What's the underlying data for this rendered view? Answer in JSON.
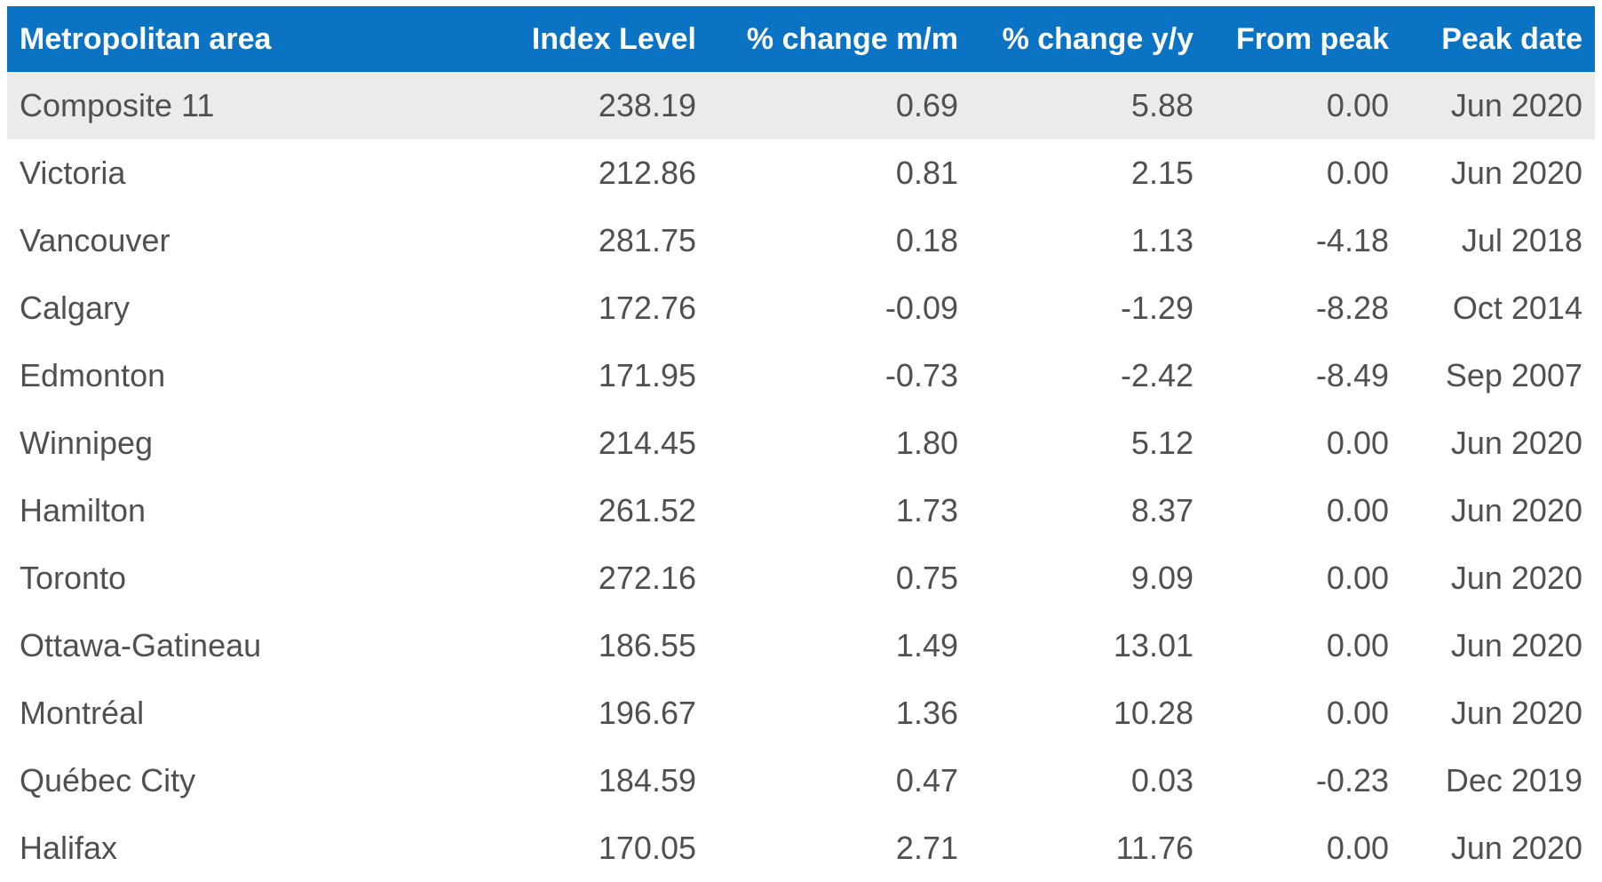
{
  "chart_data": {
    "type": "table",
    "columns": [
      "Metropolitan area",
      "Index Level",
      "% change m/m",
      "% change y/y",
      "From peak",
      "Peak date"
    ],
    "rows": [
      [
        "Composite 11",
        "238.19",
        "0.69",
        "5.88",
        "0.00",
        "Jun 2020"
      ],
      [
        "Victoria",
        "212.86",
        "0.81",
        "2.15",
        "0.00",
        "Jun 2020"
      ],
      [
        "Vancouver",
        "281.75",
        "0.18",
        "1.13",
        "-4.18",
        "Jul 2018"
      ],
      [
        "Calgary",
        "172.76",
        "-0.09",
        "-1.29",
        "-8.28",
        "Oct 2014"
      ],
      [
        "Edmonton",
        "171.95",
        "-0.73",
        "-2.42",
        "-8.49",
        "Sep 2007"
      ],
      [
        "Winnipeg",
        "214.45",
        "1.80",
        "5.12",
        "0.00",
        "Jun 2020"
      ],
      [
        "Hamilton",
        "261.52",
        "1.73",
        "8.37",
        "0.00",
        "Jun 2020"
      ],
      [
        "Toronto",
        "272.16",
        "0.75",
        "9.09",
        "0.00",
        "Jun 2020"
      ],
      [
        "Ottawa-Gatineau",
        "186.55",
        "1.49",
        "13.01",
        "0.00",
        "Jun 2020"
      ],
      [
        "Montréal",
        "196.67",
        "1.36",
        "10.28",
        "0.00",
        "Jun 2020"
      ],
      [
        "Québec City",
        "184.59",
        "0.47",
        "0.03",
        "-0.23",
        "Dec 2019"
      ],
      [
        "Halifax",
        "170.05",
        "2.71",
        "11.76",
        "0.00",
        "Jun 2020"
      ]
    ]
  },
  "colors": {
    "header_bg": "#0a73c4",
    "header_text": "#ffffff",
    "highlight_row_bg": "#ebebeb",
    "body_text": "#505050"
  }
}
